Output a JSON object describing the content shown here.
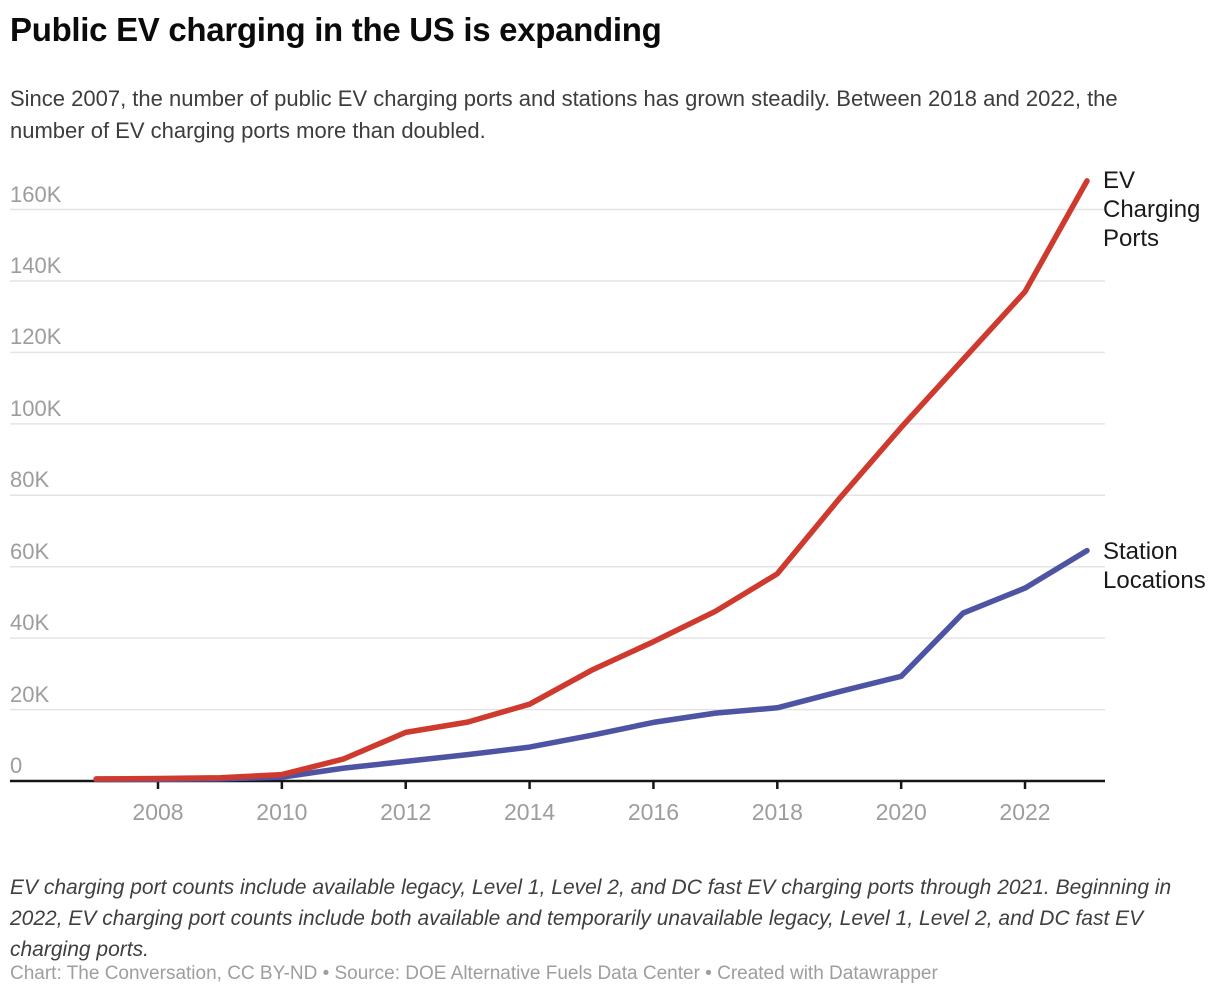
{
  "title": "Public EV charging in the US is expanding",
  "subtitle": "Since 2007, the number of public EV charging ports and stations has grown steadily. Between 2018 and 2022, the number of EV charging ports more than doubled.",
  "footnote": "EV charging port counts include available legacy, Level 1, Level 2, and DC fast EV charging ports through 2021. Beginning in 2022, EV charging port counts include both available and temporarily unavailable legacy, Level 1, Level 2, and DC fast EV charging ports.",
  "credit": "Chart: The Conversation, CC BY-ND • Source: DOE Alternative Fuels Data Center • Created with Datawrapper",
  "series_labels": {
    "ports": {
      "lines": [
        "EV",
        "Charging",
        "Ports"
      ]
    },
    "stations": {
      "lines": [
        "Station",
        "Locations"
      ]
    }
  },
  "colors": {
    "ports": "#cf3a2e",
    "stations": "#4e54a4",
    "grid": "#e4e4e4",
    "axis": "#161616",
    "axis_text": "#9d9d9d"
  },
  "chart_data": {
    "type": "line",
    "x": [
      2007,
      2008,
      2009,
      2010,
      2011,
      2012,
      2013,
      2014,
      2015,
      2016,
      2017,
      2018,
      2019,
      2020,
      2021,
      2022,
      2023
    ],
    "series": [
      {
        "name": "EV Charging Ports",
        "color": "#cf3a2e",
        "values": [
          600,
          700,
          900,
          1800,
          6200,
          13600,
          16500,
          21500,
          31000,
          39000,
          47500,
          58000,
          79000,
          99000,
          118000,
          137000,
          168000
        ]
      },
      {
        "name": "Station Locations",
        "color": "#4e54a4",
        "values": [
          400,
          450,
          600,
          1100,
          3600,
          5500,
          7400,
          9500,
          12800,
          16400,
          19000,
          20500,
          25000,
          29300,
          47000,
          54000,
          64500
        ]
      }
    ],
    "title": "Public EV charging in the US is expanding",
    "xlabel": "",
    "ylabel": "",
    "ylim": [
      0,
      170000
    ],
    "xlim": [
      2007,
      2023
    ],
    "yticks": {
      "values": [
        0,
        20000,
        40000,
        60000,
        80000,
        100000,
        120000,
        140000,
        160000
      ],
      "labels": [
        "0",
        "20K",
        "40K",
        "60K",
        "80K",
        "100K",
        "120K",
        "140K",
        "160K"
      ]
    },
    "xticks": {
      "values": [
        2008,
        2010,
        2012,
        2014,
        2016,
        2018,
        2020,
        2022
      ],
      "labels": [
        "2008",
        "2010",
        "2012",
        "2014",
        "2016",
        "2018",
        "2020",
        "2022"
      ]
    },
    "grid": "horizontal",
    "legend_position": "right-of-line-ends"
  }
}
